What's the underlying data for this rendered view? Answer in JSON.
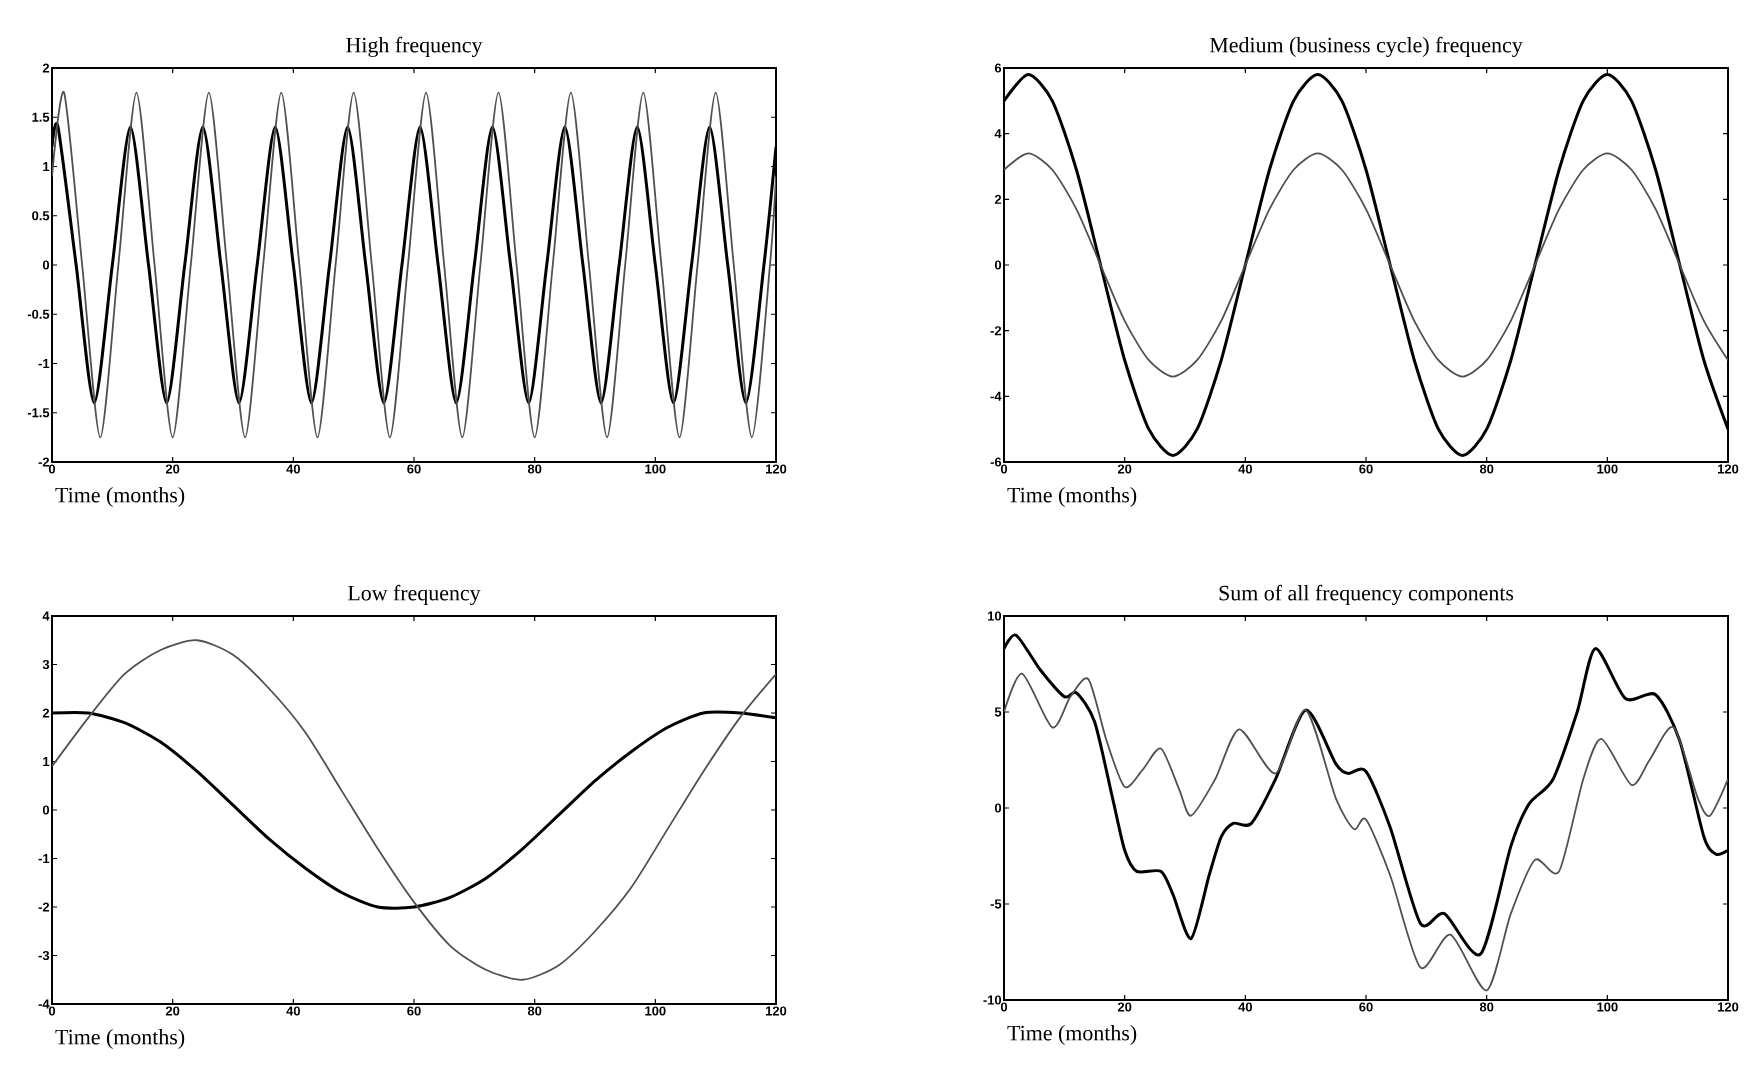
{
  "chart_data": [
    {
      "type": "line",
      "title": "High frequency",
      "xlabel": "Time (months)",
      "xlim": [
        0,
        120
      ],
      "ylim": [
        -2,
        2
      ],
      "xticks": [
        0,
        20,
        40,
        60,
        80,
        100,
        120
      ],
      "yticks": [
        -2,
        -1.5,
        -1,
        -0.5,
        0,
        0.5,
        1,
        1.5,
        2
      ],
      "series": [
        {
          "color": "#000000",
          "x": [
            0,
            1,
            4,
            7,
            10,
            13,
            16,
            19,
            22,
            25,
            28,
            31,
            34,
            37,
            40,
            43,
            46,
            49,
            52,
            55,
            58,
            61,
            64,
            67,
            70,
            73,
            76,
            79,
            82,
            85,
            88,
            91,
            94,
            97,
            100,
            103,
            106,
            109,
            112,
            115,
            118,
            120
          ],
          "values": [
            1.2,
            1.4,
            0,
            -1.4,
            0,
            1.4,
            0,
            -1.4,
            0,
            1.4,
            0,
            -1.4,
            0,
            1.4,
            0,
            -1.4,
            0,
            1.4,
            0,
            -1.4,
            0,
            1.4,
            0,
            -1.4,
            0,
            1.4,
            0,
            -1.4,
            0,
            1.4,
            0,
            -1.4,
            0,
            1.4,
            0,
            -1.4,
            0,
            1.4,
            0,
            -1.4,
            0,
            1.2
          ]
        },
        {
          "color": "#505050",
          "x": [
            0,
            2,
            5,
            8,
            11,
            14,
            17,
            20,
            23,
            26,
            29,
            32,
            35,
            38,
            41,
            44,
            47,
            50,
            53,
            56,
            59,
            62,
            65,
            68,
            71,
            74,
            77,
            80,
            83,
            86,
            89,
            92,
            95,
            98,
            101,
            104,
            107,
            110,
            113,
            116,
            119,
            120
          ],
          "values": [
            0.9,
            1.75,
            0,
            -1.75,
            0,
            1.75,
            0,
            -1.75,
            0,
            1.75,
            0,
            -1.75,
            0,
            1.75,
            0,
            -1.75,
            0,
            1.75,
            0,
            -1.75,
            0,
            1.75,
            0,
            -1.75,
            0,
            1.75,
            0,
            -1.75,
            0,
            1.75,
            0,
            -1.75,
            0,
            1.75,
            0,
            -1.75,
            0,
            1.75,
            0,
            -1.75,
            0,
            0.9
          ]
        }
      ]
    },
    {
      "type": "line",
      "title": "Medium (business cycle) frequency",
      "xlabel": "Time (months)",
      "xlim": [
        0,
        120
      ],
      "ylim": [
        -6,
        6
      ],
      "xticks": [
        0,
        20,
        40,
        60,
        80,
        100,
        120
      ],
      "yticks": [
        -6,
        -4,
        -2,
        0,
        2,
        4,
        6
      ],
      "x": [
        0,
        4,
        8,
        12,
        16,
        20,
        24,
        28,
        32,
        36,
        40,
        44,
        48,
        52,
        56,
        60,
        64,
        68,
        72,
        76,
        80,
        84,
        88,
        92,
        96,
        100,
        104,
        108,
        112,
        116,
        120
      ],
      "series": [
        {
          "color": "#000000",
          "values": [
            5.0,
            5.8,
            5.0,
            2.9,
            0,
            -2.9,
            -5.0,
            -5.8,
            -5.0,
            -2.9,
            0,
            2.9,
            5.0,
            5.8,
            5.0,
            2.9,
            0,
            -2.9,
            -5.0,
            -5.8,
            -5.0,
            -2.9,
            0,
            2.9,
            5.0,
            5.8,
            5.0,
            2.9,
            0,
            -2.9,
            -5.0
          ]
        },
        {
          "color": "#505050",
          "values": [
            2.9,
            3.4,
            2.9,
            1.7,
            0,
            -1.7,
            -2.9,
            -3.4,
            -2.9,
            -1.7,
            0,
            1.7,
            2.9,
            3.4,
            2.9,
            1.7,
            0,
            -1.7,
            -2.9,
            -3.4,
            -2.9,
            -1.7,
            0,
            1.7,
            2.9,
            3.4,
            2.9,
            1.7,
            0,
            -1.7,
            -2.9
          ]
        }
      ]
    },
    {
      "type": "line",
      "title": "Low frequency",
      "xlabel": "Time (months)",
      "xlim": [
        0,
        120
      ],
      "ylim": [
        -4,
        4
      ],
      "xticks": [
        0,
        20,
        40,
        60,
        80,
        100,
        120
      ],
      "yticks": [
        -4,
        -3,
        -2,
        -1,
        0,
        1,
        2,
        3,
        4
      ],
      "x": [
        0,
        6,
        12,
        18,
        24,
        30,
        36,
        42,
        48,
        54,
        60,
        66,
        72,
        78,
        84,
        90,
        96,
        102,
        108,
        114,
        120
      ],
      "series": [
        {
          "color": "#000000",
          "values": [
            2.0,
            2.0,
            1.8,
            1.4,
            0.8,
            0.1,
            -0.6,
            -1.2,
            -1.7,
            -2.0,
            -2.0,
            -1.8,
            -1.4,
            -0.8,
            -0.1,
            0.6,
            1.2,
            1.7,
            2.0,
            2.0,
            1.9
          ]
        },
        {
          "color": "#505050",
          "values": [
            0.9,
            1.9,
            2.8,
            3.3,
            3.5,
            3.2,
            2.5,
            1.6,
            0.4,
            -0.8,
            -1.9,
            -2.8,
            -3.3,
            -3.5,
            -3.2,
            -2.5,
            -1.6,
            -0.4,
            0.8,
            1.9,
            2.8
          ]
        }
      ]
    },
    {
      "type": "line",
      "title": "Sum of all frequency components",
      "xlabel": "Time (months)",
      "xlim": [
        0,
        120
      ],
      "ylim": [
        -10,
        10
      ],
      "xticks": [
        0,
        20,
        40,
        60,
        80,
        100,
        120
      ],
      "yticks": [
        -10,
        -5,
        0,
        5,
        10
      ],
      "series": [
        {
          "color": "#000000",
          "x": [
            0,
            2,
            6,
            10,
            12,
            15,
            18,
            20,
            22,
            26,
            28,
            31,
            34,
            36,
            38,
            41,
            45,
            50,
            55,
            57,
            60,
            64,
            69,
            73,
            79,
            84,
            87,
            91,
            95,
            98,
            103,
            108,
            112,
            116,
            118,
            120
          ],
          "values": [
            8.3,
            9.0,
            7.2,
            5.8,
            6.0,
            4.5,
            0.5,
            -2.2,
            -3.3,
            -3.3,
            -4.5,
            -6.8,
            -3.5,
            -1.5,
            -0.8,
            -0.8,
            1.5,
            5.1,
            2.3,
            1.8,
            1.9,
            -1.0,
            -6.0,
            -5.5,
            -7.6,
            -2.0,
            0.2,
            1.5,
            5.0,
            8.3,
            5.7,
            5.9,
            3.5,
            -1.5,
            -2.4,
            -2.2
          ]
        },
        {
          "color": "#505050",
          "x": [
            0,
            3,
            8,
            11,
            14,
            17,
            20,
            23,
            26,
            29,
            31,
            35,
            39,
            45,
            50,
            55,
            58,
            60,
            64,
            69,
            74,
            80,
            84,
            88,
            92,
            96,
            99,
            104,
            107,
            111,
            115,
            117,
            120
          ],
          "values": [
            5.0,
            7.0,
            4.2,
            5.8,
            6.7,
            3.5,
            1.1,
            2.0,
            3.1,
            1.0,
            -0.4,
            1.5,
            4.1,
            1.8,
            5.1,
            0.5,
            -1.1,
            -0.6,
            -3.5,
            -8.3,
            -6.6,
            -9.5,
            -5.5,
            -2.7,
            -3.3,
            1.5,
            3.6,
            1.2,
            2.5,
            4.2,
            0.5,
            -0.4,
            1.5
          ]
        }
      ]
    }
  ]
}
